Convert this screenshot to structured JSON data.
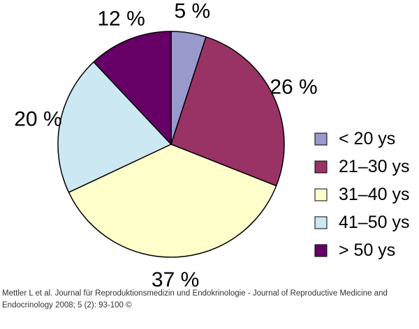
{
  "chart_data": {
    "type": "pie",
    "slices": [
      {
        "label": "< 20 ys",
        "value": 5,
        "value_label": "5 %",
        "color": "#9999cc"
      },
      {
        "label": "21–30 ys",
        "value": 26,
        "value_label": "26 %",
        "color": "#993366"
      },
      {
        "label": "31–40 ys",
        "value": 37,
        "value_label": "37 %",
        "color": "#ffffcc"
      },
      {
        "label": "41–50 ys",
        "value": 20,
        "value_label": "20 %",
        "color": "#cce8f2"
      },
      {
        "label": "> 50 ys",
        "value": 12,
        "value_label": "12 %",
        "color": "#660066"
      }
    ],
    "start_angle_deg": 0,
    "direction": "clockwise",
    "legend_position": "right"
  },
  "caption": {
    "line1": "Mettler L et al. Journal für Reproduktionsmedizin und Endokrinologie - Journal of Reproductive Medicine and",
    "line2": "Endocrinology 2008; 5 (2): 93-100 ©"
  }
}
